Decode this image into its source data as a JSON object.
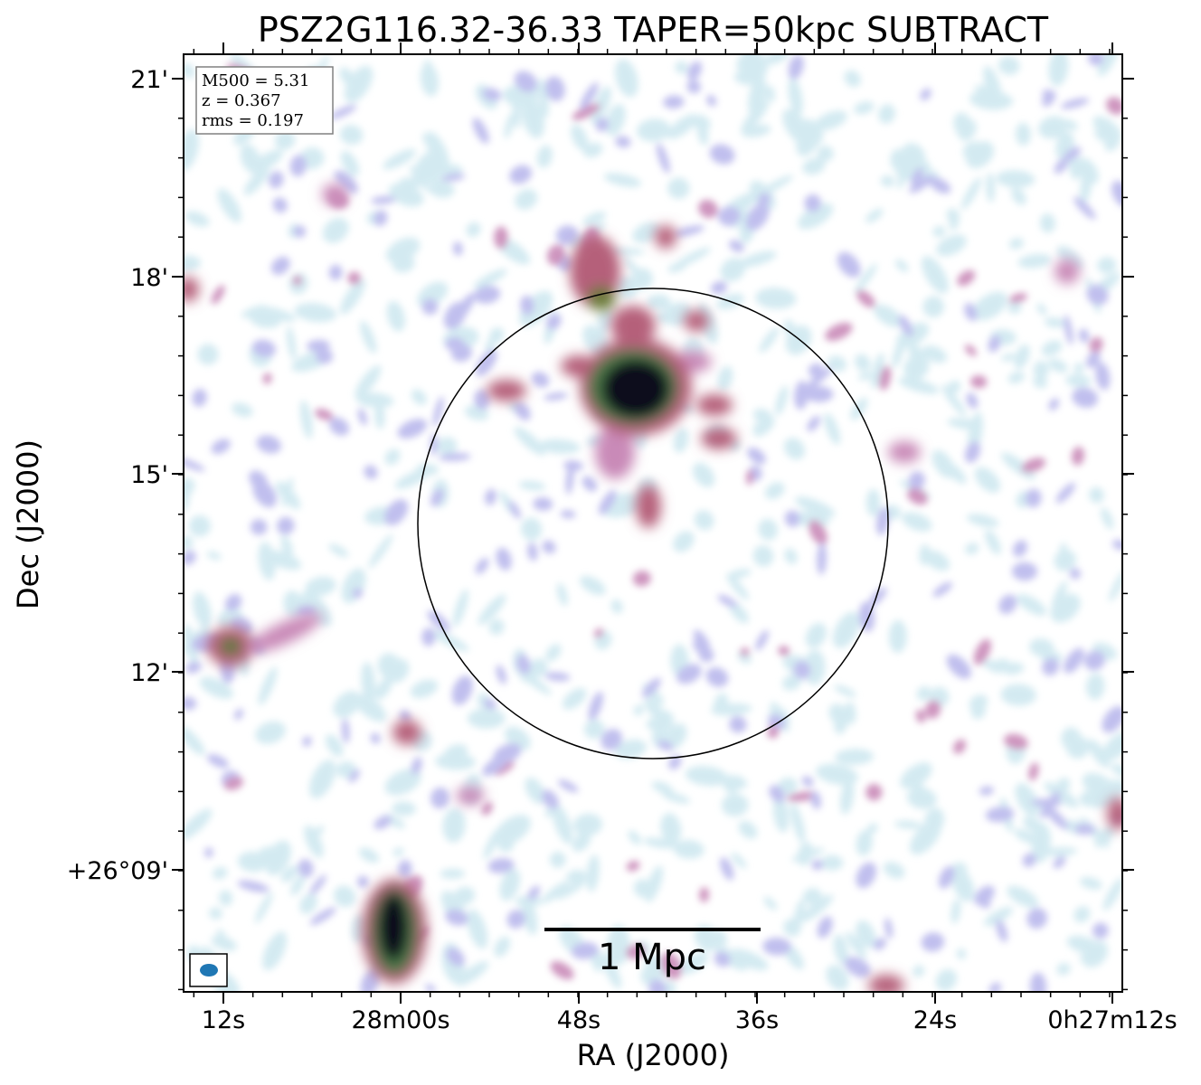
{
  "figure": {
    "title": "PSZ2G116.32-36.33 TAPER=50kpc SUBTRACT",
    "xlabel": "RA (J2000)",
    "ylabel": "Dec (J2000)",
    "x_ticks": [
      "12s",
      "28m00s",
      "48s",
      "36s",
      "24s",
      "0h27m12s"
    ],
    "y_ticks": [
      "21'",
      "18'",
      "15'",
      "12'",
      "+26°09'"
    ]
  },
  "info_box": {
    "lines": [
      "M500 = 5.31",
      "z = 0.367",
      "rms = 0.197"
    ]
  },
  "scale_bar": {
    "label": "1 Mpc"
  },
  "colors": {
    "frame": "#000000",
    "beam": "#1f77b4",
    "noise_light": "#cfe8f0",
    "noise_mid": "#b9b8ec",
    "emission_mid": "#c98ab8",
    "emission_high": "#b5607a",
    "emission_core": "#0e0e1e"
  }
}
